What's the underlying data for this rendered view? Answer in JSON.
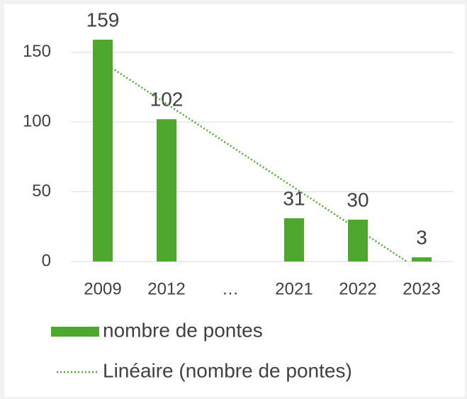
{
  "chart_data": {
    "type": "bar",
    "categories": [
      "2009",
      "2012",
      "…",
      "2021",
      "2022",
      "2023"
    ],
    "series": [
      {
        "name": "nombre de pontes",
        "color": "#4ea72e",
        "values": [
          159,
          102,
          null,
          31,
          30,
          3
        ]
      },
      {
        "name": "Linéaire (nombre de pontes)",
        "color": "#4ea72e",
        "type": "trendline",
        "values": [
          143,
          113,
          83,
          53,
          23,
          -7
        ]
      }
    ],
    "ylim": [
      0,
      160
    ],
    "yticks": [
      0,
      50,
      100,
      150
    ],
    "grid": true,
    "data_labels": true,
    "legend": "bottom"
  }
}
